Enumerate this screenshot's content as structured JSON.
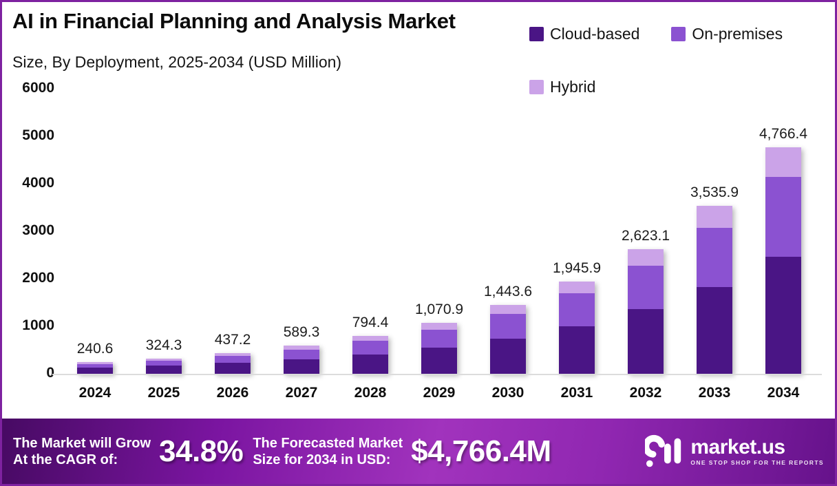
{
  "header": {
    "title": "AI in Financial Planning and Analysis Market",
    "subtitle": "Size, By Deployment, 2025-2034 (USD Million)"
  },
  "chart_data": {
    "type": "bar",
    "stacked": true,
    "title": "AI in Financial Planning and Analysis Market",
    "subtitle": "Size, By Deployment, 2025-2034 (USD Million)",
    "xlabel": "",
    "ylabel": "USD Million",
    "ylim": [
      0,
      6000
    ],
    "y_ticks": [
      0,
      1000,
      2000,
      3000,
      4000,
      5000,
      6000
    ],
    "grid": false,
    "legend_position": "top-right",
    "categories": [
      "2024",
      "2025",
      "2026",
      "2027",
      "2028",
      "2029",
      "2030",
      "2031",
      "2032",
      "2033",
      "2034"
    ],
    "series": [
      {
        "name": "Cloud-based",
        "color": "#4A1585",
        "values": [
          124.4,
          167.7,
          226.0,
          304.7,
          410.7,
          553.7,
          746.3,
          1006.0,
          1356.1,
          1828.1,
          2464.2
        ]
      },
      {
        "name": "On-premises",
        "color": "#8B52D1",
        "values": [
          84.7,
          114.2,
          153.9,
          207.4,
          279.6,
          377.0,
          508.1,
          685.0,
          923.3,
          1244.6,
          1677.8
        ]
      },
      {
        "name": "Hybrid",
        "color": "#CBA3E8",
        "values": [
          31.5,
          42.4,
          57.3,
          77.2,
          104.1,
          140.2,
          189.2,
          254.9,
          343.7,
          463.2,
          624.4
        ]
      }
    ],
    "totals": [
      240.6,
      324.3,
      437.2,
      589.3,
      794.4,
      1070.9,
      1443.6,
      1945.9,
      2623.1,
      3535.9,
      4766.4
    ],
    "total_labels": [
      "240.6",
      "324.3",
      "437.2",
      "589.3",
      "794.4",
      "1,070.9",
      "1,443.6",
      "1,945.9",
      "2,623.1",
      "3,535.9",
      "4,766.4"
    ]
  },
  "banner": {
    "cagr_label_line1": "The Market will Grow",
    "cagr_label_line2": "At the CAGR of:",
    "cagr_value": "34.8%",
    "forecast_label_line1": "The Forecasted Market",
    "forecast_label_line2": "Size for 2034 in USD:",
    "forecast_value": "$4,766.4M",
    "brand_name": "market.us",
    "brand_tagline": "ONE STOP SHOP FOR THE REPORTS"
  },
  "colors": {
    "frame_border": "#7E22A0",
    "cloud_based": "#4A1585",
    "on_premises": "#8B52D1",
    "hybrid": "#CBA3E8",
    "banner_gradient_start": "#470A63",
    "banner_gradient_mid": "#A133BD",
    "banner_gradient_end": "#66128B"
  }
}
